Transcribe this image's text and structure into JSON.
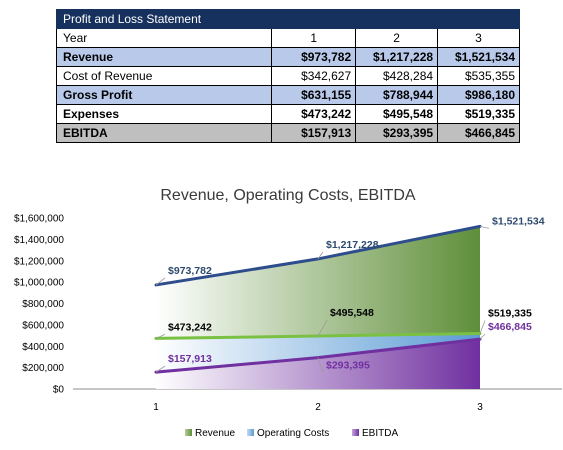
{
  "table": {
    "title": "Profit and Loss Statement",
    "header": {
      "label": "Year",
      "years": [
        "1",
        "2",
        "3"
      ]
    },
    "rows": [
      {
        "label": "Revenue",
        "values": [
          "$973,782",
          "$1,217,228",
          "$1,521,534"
        ]
      },
      {
        "label": "Cost of Revenue",
        "values": [
          "$342,627",
          "$428,284",
          "$535,355"
        ]
      },
      {
        "label": "Gross Profit",
        "values": [
          "$631,155",
          "$788,944",
          "$986,180"
        ]
      },
      {
        "label": "Expenses",
        "values": [
          "$473,242",
          "$495,548",
          "$519,335"
        ]
      },
      {
        "label": "EBITDA",
        "values": [
          "$157,913",
          "$293,395",
          "$466,845"
        ]
      }
    ]
  },
  "chart_data": {
    "type": "area",
    "title": "Revenue, Operating Costs, EBITDA",
    "categories": [
      "1",
      "2",
      "3"
    ],
    "ylim": [
      0,
      1600000
    ],
    "yticks": [
      "$0",
      "$200,000",
      "$400,000",
      "$600,000",
      "$800,000",
      "$1,000,000",
      "$1,200,000",
      "$1,400,000",
      "$1,600,000"
    ],
    "grid": false,
    "legend_position": "bottom",
    "series": [
      {
        "name": "Revenue",
        "values": [
          973782,
          1217228,
          1521534
        ],
        "labels": [
          "$973,782",
          "$1,217,228",
          "$1,521,534"
        ],
        "line_color": "#2e4d8c",
        "fill_color": "#5f8f3a",
        "label_color": "#2e4b6e"
      },
      {
        "name": "Operating Costs",
        "values": [
          473242,
          495548,
          519335
        ],
        "labels": [
          "$473,242",
          "$495,548",
          "$519,335"
        ],
        "line_color": "#7ac143",
        "fill_color": "#5b9bd5",
        "label_color": "#000000"
      },
      {
        "name": "EBITDA",
        "values": [
          157913,
          293395,
          466845
        ],
        "labels": [
          "$157,913",
          "$293,395",
          "$466,845"
        ],
        "line_color": "#7030a0",
        "fill_color": "#7030a0",
        "label_color": "#7030a0"
      }
    ]
  }
}
